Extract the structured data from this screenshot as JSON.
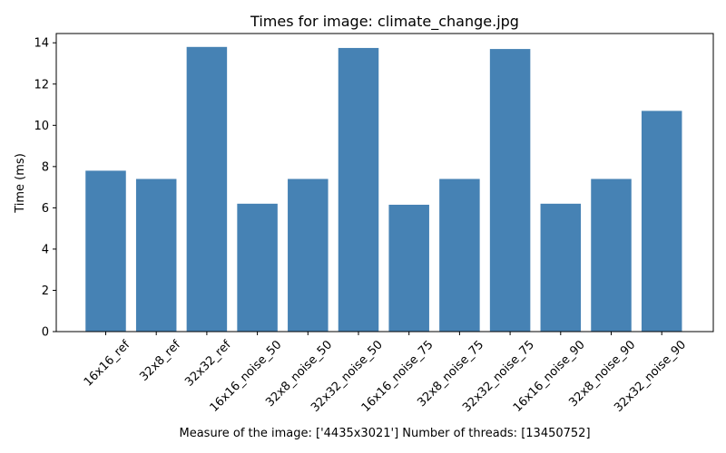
{
  "chart_data": {
    "type": "bar",
    "title": "Times for image: climate_change.jpg",
    "xlabel": "Measure of the image: ['4435x3021'] Number of threads: [13450752]",
    "ylabel": "Time (ms)",
    "categories": [
      "16x16_ref",
      "32x8_ref",
      "32x32_ref",
      "16x16_noise_50",
      "32x8_noise_50",
      "32x32_noise_50",
      "16x16_noise_75",
      "32x8_noise_75",
      "32x32_noise_75",
      "16x16_noise_90",
      "32x8_noise_90",
      "32x32_noise_90"
    ],
    "values": [
      7.8,
      7.4,
      13.8,
      6.2,
      7.4,
      13.75,
      6.15,
      7.4,
      13.7,
      6.2,
      7.4,
      10.7
    ],
    "ylim": [
      0,
      14.45
    ],
    "yticks": [
      0,
      2,
      4,
      6,
      8,
      10,
      12,
      14
    ],
    "grid": false,
    "bar_color": "#4682b4"
  }
}
